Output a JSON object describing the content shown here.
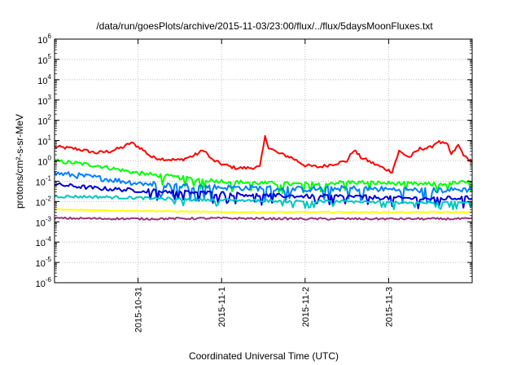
{
  "chart_data": {
    "type": "line",
    "title": "/data/run/goesPlots/archive/2015-11-03/23:00/flux/../flux/5daysMoonFluxes.txt",
    "xlabel": "Coordinated Universal Time (UTC)",
    "ylabel": "protons/cm²-s-sr-MeV",
    "yscale": "log",
    "ylim": [
      1e-06,
      1000000.0
    ],
    "xlim": [
      "2015-10-30T00:00",
      "2015-11-04T00:00"
    ],
    "x_ticks": [
      {
        "label": "2015-10-31",
        "value": "2015-10-31T00:00"
      },
      {
        "label": "2015-11-1",
        "value": "2015-11-01T00:00"
      },
      {
        "label": "2015-11-2",
        "value": "2015-11-02T00:00"
      },
      {
        "label": "2015-11-3",
        "value": "2015-11-03T00:00"
      }
    ],
    "y_ticks": [
      {
        "base": "10",
        "exp": "-6",
        "value": 1e-06
      },
      {
        "base": "10",
        "exp": "-5",
        "value": 1e-05
      },
      {
        "base": "10",
        "exp": "-4",
        "value": 0.0001
      },
      {
        "base": "10",
        "exp": "-3",
        "value": 0.001
      },
      {
        "base": "10",
        "exp": "-2",
        "value": 0.01
      },
      {
        "base": "10",
        "exp": "-1",
        "value": 0.1
      },
      {
        "base": "10",
        "exp": "0",
        "value": 1
      },
      {
        "base": "10",
        "exp": "1",
        "value": 10
      },
      {
        "base": "10",
        "exp": "2",
        "value": 100
      },
      {
        "base": "10",
        "exp": "3",
        "value": 1000
      },
      {
        "base": "10",
        "exp": "4",
        "value": 10000
      },
      {
        "base": "10",
        "exp": "5",
        "value": 100000
      },
      {
        "base": "10",
        "exp": "6",
        "value": 1000000
      }
    ],
    "grid": true,
    "series": [
      {
        "color": "#ff0000",
        "noise": 0.08,
        "points": [
          [
            "2015-10-30T00:00",
            5
          ],
          [
            "2015-10-30T06:00",
            4
          ],
          [
            "2015-10-30T12:00",
            2.5
          ],
          [
            "2015-10-30T16:00",
            3
          ],
          [
            "2015-10-30T20:00",
            5
          ],
          [
            "2015-10-30T22:00",
            8
          ],
          [
            "2015-10-31T01:00",
            4
          ],
          [
            "2015-10-31T04:00",
            1.5
          ],
          [
            "2015-10-31T08:00",
            1.2
          ],
          [
            "2015-10-31T12:00",
            1.1
          ],
          [
            "2015-10-31T16:00",
            1.8
          ],
          [
            "2015-10-31T19:00",
            3.5
          ],
          [
            "2015-10-31T21:00",
            1.2
          ],
          [
            "2015-11-01T00:00",
            0.7
          ],
          [
            "2015-11-01T04:00",
            0.45
          ],
          [
            "2015-11-01T08:00",
            0.45
          ],
          [
            "2015-11-01T11:00",
            0.5
          ],
          [
            "2015-11-01T12:30",
            15
          ],
          [
            "2015-11-01T13:30",
            5
          ],
          [
            "2015-11-01T16:00",
            2.5
          ],
          [
            "2015-11-01T20:00",
            1.5
          ],
          [
            "2015-11-02T00:00",
            0.6
          ],
          [
            "2015-11-02T04:00",
            0.5
          ],
          [
            "2015-11-02T08:00",
            0.7
          ],
          [
            "2015-11-02T12:00",
            1
          ],
          [
            "2015-11-02T14:00",
            3.5
          ],
          [
            "2015-11-02T16:00",
            1.5
          ],
          [
            "2015-11-02T20:00",
            0.7
          ],
          [
            "2015-11-02T23:00",
            0.4
          ],
          [
            "2015-11-03T01:00",
            0.3
          ],
          [
            "2015-11-03T03:00",
            3
          ],
          [
            "2015-11-03T06:00",
            1.5
          ],
          [
            "2015-11-03T09:00",
            4
          ],
          [
            "2015-11-03T12:00",
            4.5
          ],
          [
            "2015-11-03T14:00",
            9
          ],
          [
            "2015-11-03T17:00",
            6
          ],
          [
            "2015-11-03T18:00",
            2
          ],
          [
            "2015-11-03T20:00",
            6
          ],
          [
            "2015-11-03T22:00",
            1.5
          ],
          [
            "2015-11-04T00:00",
            1
          ]
        ]
      },
      {
        "color": "#00ff00",
        "noise": 0.1,
        "points": [
          [
            "2015-10-30T00:00",
            1
          ],
          [
            "2015-10-30T12:00",
            0.6
          ],
          [
            "2015-10-31T00:00",
            0.25
          ],
          [
            "2015-10-31T12:00",
            0.15
          ],
          [
            "2015-11-01T00:00",
            0.1
          ],
          [
            "2015-11-01T12:00",
            0.08
          ],
          [
            "2015-11-02T00:00",
            0.07
          ],
          [
            "2015-11-02T12:00",
            0.09
          ],
          [
            "2015-11-03T00:00",
            0.08
          ],
          [
            "2015-11-03T12:00",
            0.07
          ],
          [
            "2015-11-04T00:00",
            0.09
          ]
        ]
      },
      {
        "color": "#0080ff",
        "noise": 0.14,
        "points": [
          [
            "2015-10-30T00:00",
            0.25
          ],
          [
            "2015-10-30T12:00",
            0.15
          ],
          [
            "2015-10-31T00:00",
            0.08
          ],
          [
            "2015-10-31T12:00",
            0.06
          ],
          [
            "2015-11-01T00:00",
            0.05
          ],
          [
            "2015-11-01T12:00",
            0.045
          ],
          [
            "2015-11-02T00:00",
            0.04
          ],
          [
            "2015-11-02T12:00",
            0.045
          ],
          [
            "2015-11-03T00:00",
            0.04
          ],
          [
            "2015-11-03T12:00",
            0.035
          ],
          [
            "2015-11-04T00:00",
            0.04
          ]
        ]
      },
      {
        "color": "#0000dd",
        "noise": 0.1,
        "points": [
          [
            "2015-10-30T00:00",
            0.07
          ],
          [
            "2015-10-30T12:00",
            0.045
          ],
          [
            "2015-10-31T00:00",
            0.035
          ],
          [
            "2015-10-31T12:00",
            0.03
          ],
          [
            "2015-11-01T00:00",
            0.025
          ],
          [
            "2015-11-01T12:00",
            0.02
          ],
          [
            "2015-11-02T00:00",
            0.018
          ],
          [
            "2015-11-02T12:00",
            0.018
          ],
          [
            "2015-11-03T00:00",
            0.015
          ],
          [
            "2015-11-03T12:00",
            0.014
          ],
          [
            "2015-11-04T00:00",
            0.015
          ]
        ]
      },
      {
        "color": "#00c8c0",
        "noise": 0.07,
        "points": [
          [
            "2015-10-30T00:00",
            0.018
          ],
          [
            "2015-10-30T12:00",
            0.017
          ],
          [
            "2015-10-31T00:00",
            0.015
          ],
          [
            "2015-10-31T12:00",
            0.013
          ],
          [
            "2015-11-01T00:00",
            0.012
          ],
          [
            "2015-11-01T12:00",
            0.011
          ],
          [
            "2015-11-02T00:00",
            0.01
          ],
          [
            "2015-11-02T12:00",
            0.01
          ],
          [
            "2015-11-03T00:00",
            0.009
          ],
          [
            "2015-11-03T12:00",
            0.009
          ],
          [
            "2015-11-04T00:00",
            0.009
          ]
        ]
      },
      {
        "color": "#ffff00",
        "noise": 0.03,
        "points": [
          [
            "2015-10-30T00:00",
            0.004
          ],
          [
            "2015-10-31T00:00",
            0.0035
          ],
          [
            "2015-11-01T00:00",
            0.003
          ],
          [
            "2015-11-02T00:00",
            0.003
          ],
          [
            "2015-11-03T00:00",
            0.003
          ],
          [
            "2015-11-04T00:00",
            0.003
          ]
        ]
      },
      {
        "color": "#993377",
        "noise": 0.05,
        "points": [
          [
            "2015-10-30T00:00",
            0.0015
          ],
          [
            "2015-10-31T00:00",
            0.0014
          ],
          [
            "2015-11-01T00:00",
            0.0015
          ],
          [
            "2015-11-02T00:00",
            0.0014
          ],
          [
            "2015-11-03T00:00",
            0.0014
          ],
          [
            "2015-11-04T00:00",
            0.0014
          ]
        ]
      }
    ]
  }
}
